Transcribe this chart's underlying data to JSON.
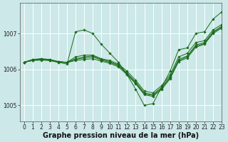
{
  "xlabel": "Graphe pression niveau de la mer (hPa)",
  "bg_color": "#cce8e8",
  "grid_color": "#ffffff",
  "line_color": "#1a6b1a",
  "marker_color": "#1a6b1a",
  "xlim": [
    -0.5,
    23
  ],
  "ylim": [
    1004.55,
    1007.85
  ],
  "yticks": [
    1005,
    1006,
    1007
  ],
  "xticks": [
    0,
    1,
    2,
    3,
    4,
    5,
    6,
    7,
    8,
    9,
    10,
    11,
    12,
    13,
    14,
    15,
    16,
    17,
    18,
    19,
    20,
    21,
    22,
    23
  ],
  "series": [
    [
      1006.2,
      1006.25,
      1006.3,
      1006.25,
      1006.2,
      1006.15,
      1007.05,
      1007.1,
      1007.0,
      1006.7,
      1006.45,
      1006.2,
      1005.85,
      1005.45,
      1005.0,
      1005.05,
      1005.5,
      1005.95,
      1006.55,
      1006.6,
      1007.0,
      1007.05,
      1007.4,
      1007.6
    ],
    [
      1006.2,
      1006.28,
      1006.3,
      1006.28,
      1006.22,
      1006.2,
      1006.35,
      1006.4,
      1006.4,
      1006.3,
      1006.25,
      1006.15,
      1005.95,
      1005.7,
      1005.4,
      1005.35,
      1005.55,
      1005.85,
      1006.35,
      1006.45,
      1006.75,
      1006.8,
      1007.1,
      1007.25
    ],
    [
      1006.2,
      1006.27,
      1006.28,
      1006.27,
      1006.22,
      1006.2,
      1006.3,
      1006.35,
      1006.38,
      1006.28,
      1006.22,
      1006.12,
      1005.9,
      1005.65,
      1005.35,
      1005.3,
      1005.5,
      1005.8,
      1006.28,
      1006.38,
      1006.68,
      1006.75,
      1007.05,
      1007.2
    ],
    [
      1006.2,
      1006.26,
      1006.27,
      1006.26,
      1006.21,
      1006.2,
      1006.28,
      1006.32,
      1006.35,
      1006.26,
      1006.2,
      1006.1,
      1005.88,
      1005.62,
      1005.32,
      1005.28,
      1005.47,
      1005.77,
      1006.25,
      1006.35,
      1006.65,
      1006.72,
      1007.02,
      1007.18
    ],
    [
      1006.2,
      1006.25,
      1006.26,
      1006.25,
      1006.2,
      1006.19,
      1006.25,
      1006.28,
      1006.3,
      1006.23,
      1006.17,
      1006.07,
      1005.85,
      1005.6,
      1005.3,
      1005.25,
      1005.44,
      1005.74,
      1006.22,
      1006.32,
      1006.62,
      1006.7,
      1007.0,
      1007.15
    ]
  ],
  "tick_fontsize": 5.5,
  "label_fontsize": 7.0
}
